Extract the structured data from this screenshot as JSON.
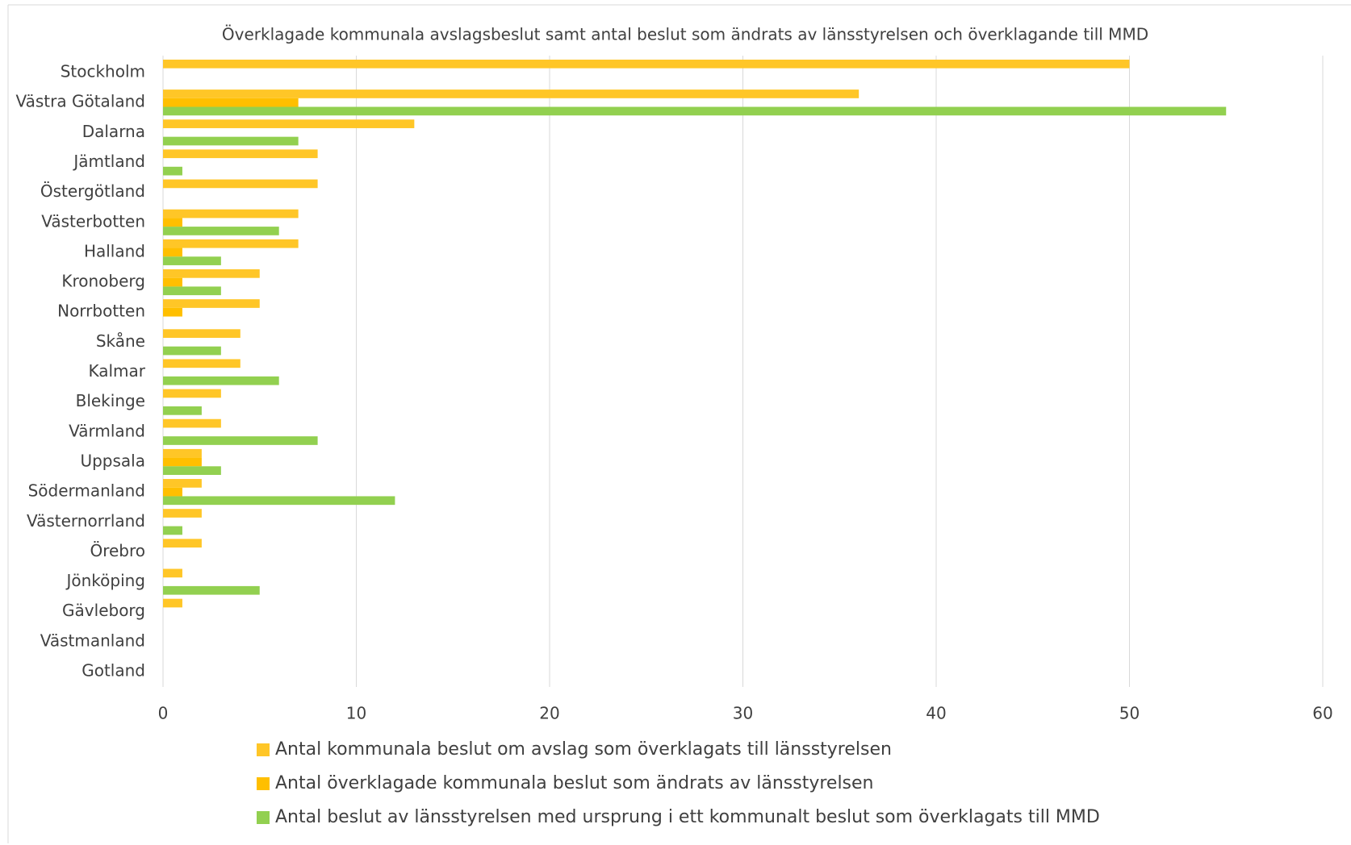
{
  "chart_data": {
    "type": "bar",
    "orientation": "horizontal",
    "title": "Överklagade kommunala avslagsbeslut samt antal beslut som ändrats av länsstyrelsen och överklagande till MMD",
    "categories": [
      "Stockholm",
      "Västra Götaland",
      "Dalarna",
      "Jämtland",
      "Östergötland",
      "Västerbotten",
      "Halland",
      "Kronoberg",
      "Norrbotten",
      "Skåne",
      "Kalmar",
      "Blekinge",
      "Värmland",
      "Uppsala",
      "Södermanland",
      "Västernorrland",
      "Örebro",
      "Jönköping",
      "Gävleborg",
      "Västmanland",
      "Gotland"
    ],
    "series": [
      {
        "name": "Antal kommunala beslut om avslag som överklagats till länsstyrelsen",
        "color": "#ffc627",
        "values": [
          50,
          36,
          13,
          8,
          8,
          7,
          7,
          5,
          5,
          4,
          4,
          3,
          3,
          2,
          2,
          2,
          2,
          1,
          1,
          0,
          0
        ]
      },
      {
        "name": "Antal överklagade kommunala beslut som ändrats av länsstyrelsen",
        "color": "#ffbf00",
        "values": [
          0,
          7,
          0,
          0,
          0,
          1,
          1,
          1,
          1,
          0,
          0,
          0,
          0,
          2,
          1,
          0,
          0,
          0,
          0,
          0,
          0
        ]
      },
      {
        "name": "Antal beslut av länsstyrelsen med ursprung i ett kommunalt beslut som överklagats till MMD",
        "color": "#92d050",
        "values": [
          0,
          55,
          7,
          1,
          0,
          6,
          3,
          3,
          0,
          3,
          6,
          2,
          8,
          3,
          12,
          1,
          0,
          5,
          0,
          0,
          0
        ]
      }
    ],
    "xlim": [
      0,
      60
    ],
    "xticks": [
      0,
      10,
      20,
      30,
      40,
      50,
      60
    ],
    "grid": true,
    "legend": "bottom"
  }
}
